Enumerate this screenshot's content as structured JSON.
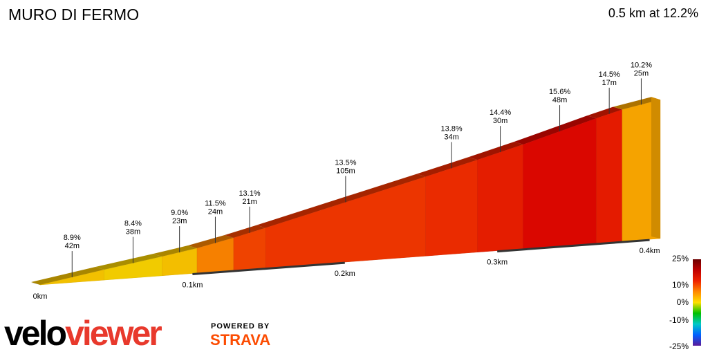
{
  "header": {
    "title": "MURO DI FERMO",
    "summary": "0.5 km at 12.2%"
  },
  "branding": {
    "logo_part1": "velo",
    "logo_part2": "viewer",
    "powered_by": "POWERED BY",
    "strava": "STRAVA"
  },
  "chart_data": {
    "type": "area",
    "title": "MURO DI FERMO",
    "subtitle": "0.5 km at 12.2%",
    "distance_unit": "km",
    "x_ticks": [
      "0km",
      "0.1km",
      "0.2km",
      "0.3km",
      "0.4km"
    ],
    "labeled_segments": [
      {
        "grade_label": "8.9%",
        "length_label": "42m",
        "grade": 8.9,
        "length_m": 42
      },
      {
        "grade_label": "8.4%",
        "length_label": "38m",
        "grade": 8.4,
        "length_m": 38
      },
      {
        "grade_label": "9.0%",
        "length_label": "23m",
        "grade": 9.0,
        "length_m": 23
      },
      {
        "grade_label": "11.5%",
        "length_label": "24m",
        "grade": 11.5,
        "length_m": 24
      },
      {
        "grade_label": "13.1%",
        "length_label": "21m",
        "grade": 13.1,
        "length_m": 21
      },
      {
        "grade_label": "13.5%",
        "length_label": "105m",
        "grade": 13.5,
        "length_m": 105
      },
      {
        "grade_label": "13.8%",
        "length_label": "34m",
        "grade": 13.8,
        "length_m": 34
      },
      {
        "grade_label": "14.4%",
        "length_label": "30m",
        "grade": 14.4,
        "length_m": 30
      },
      {
        "grade_label": "15.6%",
        "length_label": "48m",
        "grade": 15.6,
        "length_m": 48
      },
      {
        "grade_label": "14.5%",
        "length_label": "17m",
        "grade": 14.5,
        "length_m": 17
      },
      {
        "grade_label": "10.2%",
        "length_label": "25m",
        "grade": 10.2,
        "length_m": 25
      }
    ],
    "color_scale": {
      "labels": [
        "25%",
        "10%",
        "0%",
        "-10%",
        "-25%"
      ],
      "stops": [
        "#6b0000",
        "#c00000",
        "#ee2200",
        "#ff8800",
        "#ffe000",
        "#00c000",
        "#00c8c8",
        "#0060ff",
        "#5a1a9a"
      ]
    }
  }
}
